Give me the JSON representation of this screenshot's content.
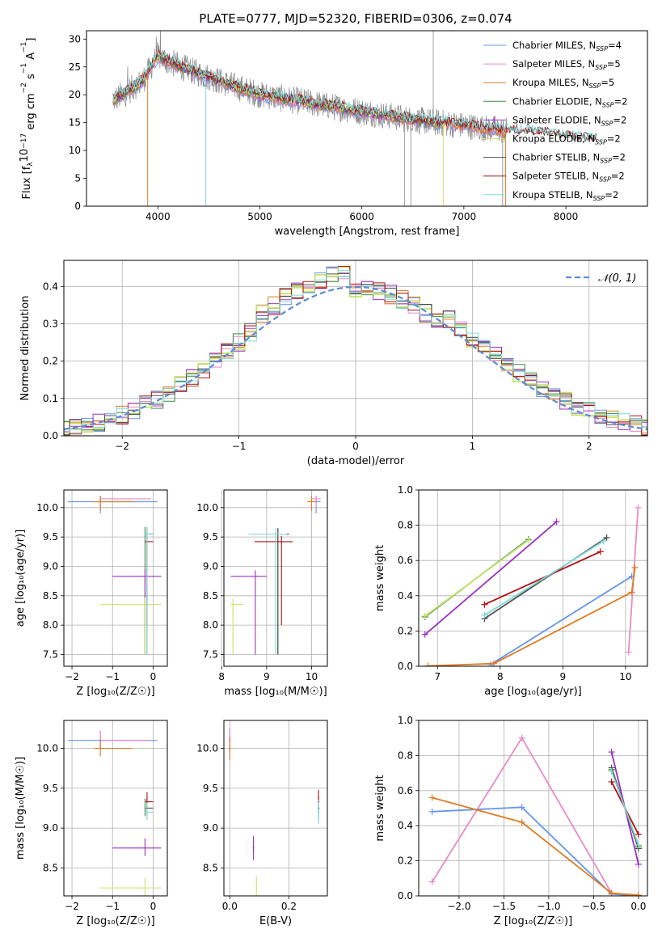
{
  "figure_title": "PLATE=0777, MJD=52320, FIBERID=0306, z=0.074",
  "colors": {
    "Chabrier MILES": "#6495ed",
    "Salpeter MILES": "#e98ac8",
    "Kroupa MILES": "#e07b20",
    "Chabrier ELODIE": "#3a8a4a",
    "Salpeter ELODIE": "#9b30c0",
    "Kroupa ELODIE": "#c8e46a",
    "Chabrier STELIB": "#505050",
    "Salpeter STELIB": "#b01010",
    "Kroupa STELIB": "#7fd8d8",
    "data": "#888888",
    "normal": "#5b8bd6"
  },
  "chart_data": [
    {
      "type": "line",
      "title": "PLATE=0777, MJD=52320, FIBERID=0306, z=0.074",
      "xlabel": "wavelength [Angstrom, rest frame]",
      "ylabel_parts": [
        "Flux [f",
        "λ",
        "10",
        "−17",
        " erg cm",
        "−2",
        " s",
        "−1",
        " A",
        "−1",
        "]"
      ],
      "xlim": [
        3300,
        8800
      ],
      "ylim": [
        0,
        31.5
      ],
      "xticks": [
        4000,
        5000,
        6000,
        7000,
        8000
      ],
      "yticks": [
        0,
        5,
        10,
        15,
        20,
        25,
        30
      ],
      "legend_position": "top-right",
      "legend": [
        {
          "name": "Chabrier MILES",
          "ssp": "4"
        },
        {
          "name": "Salpeter MILES",
          "ssp": "5"
        },
        {
          "name": "Kroupa MILES",
          "ssp": "5"
        },
        {
          "name": "Chabrier ELODIE",
          "ssp": "2"
        },
        {
          "name": "Salpeter ELODIE",
          "ssp": "2"
        },
        {
          "name": "Kroupa ELODIE",
          "ssp": "2"
        },
        {
          "name": "Chabrier STELIB",
          "ssp": "2"
        },
        {
          "name": "Salpeter STELIB",
          "ssp": "2"
        },
        {
          "name": "Kroupa STELIB",
          "ssp": "2"
        }
      ],
      "continuum": {
        "x": [
          3560,
          3700,
          3850,
          4000,
          4100,
          4300,
          4600,
          5000,
          5500,
          6000,
          6500,
          7000,
          7400,
          7800,
          8200
        ],
        "y": [
          19,
          20.5,
          22.5,
          27,
          26,
          24.5,
          22.5,
          20,
          18.5,
          17,
          15.5,
          14.5,
          13.5,
          13,
          12
        ]
      }
    },
    {
      "type": "line",
      "xlabel": "(data-model)/error",
      "ylabel": "Normed distribution",
      "xlim": [
        -2.5,
        2.5
      ],
      "ylim": [
        0,
        0.47
      ],
      "xticks": [
        -2,
        -1,
        0,
        1,
        2
      ],
      "yticks": [
        0.0,
        0.1,
        0.2,
        0.3,
        0.4
      ],
      "legend_position": "top-right",
      "legend_label": "𝒩(0, 1)",
      "grid": true
    },
    {
      "type": "scatter",
      "xlabel": "Z [log₁₀(Z/Z☉)]",
      "ylabel": "age  [log₁₀(age/yr)]",
      "xlim": [
        -2.2,
        0.35
      ],
      "ylim": [
        7.3,
        10.3
      ],
      "xticks": [
        -2,
        -1,
        0
      ],
      "yticks": [
        7.5,
        8.0,
        8.5,
        9.0,
        9.5,
        10.0
      ],
      "grid": true
    },
    {
      "type": "scatter",
      "xlabel": "mass [log₁₀(M/M☉)]",
      "ylabel": "",
      "xlim": [
        8.05,
        10.35
      ],
      "ylim": [
        7.3,
        10.3
      ],
      "xticks": [
        8,
        9,
        10
      ],
      "yticks": [
        7.5,
        8.0,
        8.5,
        9.0,
        9.5,
        10.0
      ],
      "grid": true
    },
    {
      "type": "line",
      "xlabel": "age  [log₁₀(age/yr)]",
      "ylabel": "mass weight",
      "xlim": [
        6.7,
        10.35
      ],
      "ylim": [
        0,
        1.0
      ],
      "xticks": [
        7,
        8,
        9,
        10
      ],
      "yticks": [
        0.0,
        0.2,
        0.4,
        0.6,
        0.8,
        1.0
      ],
      "grid": true,
      "series": [
        {
          "model": "Chabrier MILES",
          "x": [
            7.85,
            10.1
          ],
          "y": [
            0.01,
            0.51
          ]
        },
        {
          "model": "Salpeter MILES",
          "x": [
            10.05,
            10.2
          ],
          "y": [
            0.08,
            0.9
          ]
        },
        {
          "model": "Kroupa MILES",
          "x": [
            6.85,
            7.9,
            10.1,
            10.15
          ],
          "y": [
            0.002,
            0.015,
            0.42,
            0.56
          ]
        },
        {
          "model": "Chabrier ELODIE",
          "x": [
            6.8,
            8.45
          ],
          "y": [
            0.28,
            0.72
          ]
        },
        {
          "model": "Salpeter ELODIE",
          "x": [
            6.8,
            8.9
          ],
          "y": [
            0.18,
            0.82
          ]
        },
        {
          "model": "Kroupa ELODIE",
          "x": [
            6.8,
            8.45
          ],
          "y": [
            0.285,
            0.715
          ]
        },
        {
          "model": "Chabrier STELIB",
          "x": [
            7.75,
            9.7
          ],
          "y": [
            0.27,
            0.73
          ]
        },
        {
          "model": "Salpeter STELIB",
          "x": [
            7.75,
            9.6
          ],
          "y": [
            0.35,
            0.65
          ]
        },
        {
          "model": "Kroupa STELIB",
          "x": [
            7.75,
            9.65
          ],
          "y": [
            0.29,
            0.71
          ]
        }
      ]
    },
    {
      "type": "scatter",
      "xlabel": "Z [log₁₀(Z/Z☉)]",
      "ylabel": "mass [log₁₀(M/M☉)]",
      "xlim": [
        -2.2,
        0.35
      ],
      "ylim": [
        8.15,
        10.35
      ],
      "xticks": [
        -2,
        -1,
        0
      ],
      "yticks": [
        8.5,
        9.0,
        9.5,
        10.0
      ],
      "grid": true
    },
    {
      "type": "scatter",
      "xlabel": "E(B-V)",
      "ylabel": "",
      "xlim": [
        -0.02,
        0.33
      ],
      "ylim": [
        8.15,
        10.35
      ],
      "xticks": [
        0.0,
        0.2
      ],
      "yticks": [
        8.5,
        9.0,
        9.5,
        10.0
      ],
      "grid": true
    },
    {
      "type": "line",
      "xlabel": "Z [log₁₀(Z/Z☉)]",
      "ylabel": "mass weight",
      "xlim": [
        -2.45,
        0.1
      ],
      "ylim": [
        0,
        1.0
      ],
      "xticks": [
        -2.0,
        -1.5,
        -1.0,
        -0.5,
        0.0
      ],
      "yticks": [
        0.0,
        0.2,
        0.4,
        0.6,
        0.8,
        1.0
      ],
      "grid": true,
      "series": [
        {
          "model": "Chabrier MILES",
          "x": [
            -2.3,
            -1.3,
            -0.3,
            0.0
          ],
          "y": [
            0.48,
            0.505,
            0.01,
            0.002
          ]
        },
        {
          "model": "Salpeter MILES",
          "x": [
            -2.3,
            -1.3,
            -0.3,
            0.0
          ],
          "y": [
            0.08,
            0.9,
            0.015,
            0.003
          ]
        },
        {
          "model": "Kroupa MILES",
          "x": [
            -2.3,
            -1.3,
            -0.3,
            0.0
          ],
          "y": [
            0.56,
            0.42,
            0.015,
            0.004
          ]
        },
        {
          "model": "Chabrier ELODIE",
          "x": [
            -0.3,
            0.0
          ],
          "y": [
            0.72,
            0.28
          ]
        },
        {
          "model": "Salpeter ELODIE",
          "x": [
            -0.3,
            0.0
          ],
          "y": [
            0.82,
            0.18
          ]
        },
        {
          "model": "Kroupa ELODIE",
          "x": [
            -0.3,
            0.0
          ],
          "y": [
            0.715,
            0.285
          ]
        },
        {
          "model": "Chabrier STELIB",
          "x": [
            -0.3,
            0.0
          ],
          "y": [
            0.73,
            0.27
          ]
        },
        {
          "model": "Salpeter STELIB",
          "x": [
            -0.3,
            0.0
          ],
          "y": [
            0.65,
            0.35
          ]
        },
        {
          "model": "Kroupa STELIB",
          "x": [
            -0.3,
            0.0
          ],
          "y": [
            0.71,
            0.29
          ]
        }
      ]
    }
  ]
}
